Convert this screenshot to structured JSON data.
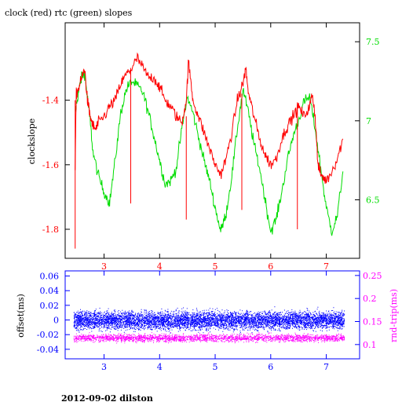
{
  "header": {
    "title": "clock (red) rtc (green) slopes"
  },
  "footer": {
    "caption": "2012-09-02 dilston"
  },
  "colors": {
    "red": "#ff0000",
    "green": "#00dd00",
    "blue": "#0000ff",
    "magenta": "#ff00ff",
    "black": "#000000"
  },
  "chart_data": [
    {
      "type": "line",
      "title": "clock (red) rtc (green) slopes",
      "xlim": [
        2.3,
        7.6
      ],
      "xticks": [
        3,
        4,
        5,
        6,
        7
      ],
      "ylabel": "clockslope",
      "ylim": [
        -1.89,
        -1.16
      ],
      "yticks": [
        -1.4,
        -1.6,
        -1.8
      ],
      "y2lim": [
        6.13,
        7.62
      ],
      "y2ticks": [
        7.5,
        7,
        6.5
      ],
      "series": [
        {
          "color": "red",
          "axis": "left",
          "points": [
            [
              2.48,
              -1.6
            ],
            [
              2.5,
              -1.38
            ],
            [
              2.55,
              -1.36
            ],
            [
              2.6,
              -1.33
            ],
            [
              2.65,
              -1.3
            ],
            [
              2.7,
              -1.4
            ],
            [
              2.75,
              -1.45
            ],
            [
              2.8,
              -1.48
            ],
            [
              2.85,
              -1.49
            ],
            [
              2.9,
              -1.47
            ],
            [
              3.0,
              -1.45
            ],
            [
              3.1,
              -1.42
            ],
            [
              3.2,
              -1.4
            ],
            [
              3.3,
              -1.35
            ],
            [
              3.4,
              -1.32
            ],
            [
              3.5,
              -1.3
            ],
            [
              3.6,
              -1.27
            ],
            [
              3.7,
              -1.3
            ],
            [
              3.8,
              -1.33
            ],
            [
              3.9,
              -1.33
            ],
            [
              4.0,
              -1.36
            ],
            [
              4.1,
              -1.4
            ],
            [
              4.2,
              -1.42
            ],
            [
              4.3,
              -1.45
            ],
            [
              4.4,
              -1.47
            ],
            [
              4.48,
              -1.4
            ],
            [
              4.52,
              -1.28
            ],
            [
              4.6,
              -1.4
            ],
            [
              4.7,
              -1.45
            ],
            [
              4.8,
              -1.5
            ],
            [
              4.9,
              -1.55
            ],
            [
              5.0,
              -1.6
            ],
            [
              5.1,
              -1.63
            ],
            [
              5.2,
              -1.58
            ],
            [
              5.3,
              -1.5
            ],
            [
              5.4,
              -1.4
            ],
            [
              5.5,
              -1.35
            ],
            [
              5.55,
              -1.3
            ],
            [
              5.6,
              -1.38
            ],
            [
              5.7,
              -1.45
            ],
            [
              5.8,
              -1.52
            ],
            [
              5.9,
              -1.57
            ],
            [
              6.0,
              -1.6
            ],
            [
              6.1,
              -1.58
            ],
            [
              6.2,
              -1.52
            ],
            [
              6.3,
              -1.48
            ],
            [
              6.4,
              -1.45
            ],
            [
              6.5,
              -1.42
            ],
            [
              6.6,
              -1.45
            ],
            [
              6.7,
              -1.42
            ],
            [
              6.75,
              -1.38
            ],
            [
              6.8,
              -1.45
            ],
            [
              6.85,
              -1.6
            ],
            [
              6.9,
              -1.63
            ],
            [
              7.0,
              -1.65
            ],
            [
              7.1,
              -1.62
            ],
            [
              7.2,
              -1.58
            ],
            [
              7.3,
              -1.52
            ]
          ]
        },
        {
          "color": "green",
          "axis": "right",
          "points": [
            [
              2.48,
              7.05
            ],
            [
              2.5,
              7.1
            ],
            [
              2.55,
              7.2
            ],
            [
              2.6,
              7.28
            ],
            [
              2.65,
              7.3
            ],
            [
              2.7,
              7.15
            ],
            [
              2.75,
              7.0
            ],
            [
              2.8,
              6.8
            ],
            [
              2.9,
              6.65
            ],
            [
              3.0,
              6.55
            ],
            [
              3.1,
              6.48
            ],
            [
              3.2,
              6.75
            ],
            [
              3.3,
              7.05
            ],
            [
              3.4,
              7.2
            ],
            [
              3.5,
              7.25
            ],
            [
              3.6,
              7.22
            ],
            [
              3.7,
              7.18
            ],
            [
              3.8,
              7.05
            ],
            [
              3.9,
              6.9
            ],
            [
              4.0,
              6.75
            ],
            [
              4.1,
              6.6
            ],
            [
              4.2,
              6.62
            ],
            [
              4.3,
              6.7
            ],
            [
              4.4,
              6.95
            ],
            [
              4.5,
              7.15
            ],
            [
              4.6,
              7.05
            ],
            [
              4.7,
              6.9
            ],
            [
              4.8,
              6.75
            ],
            [
              4.9,
              6.62
            ],
            [
              5.0,
              6.45
            ],
            [
              5.1,
              6.3
            ],
            [
              5.2,
              6.42
            ],
            [
              5.3,
              6.65
            ],
            [
              5.4,
              6.95
            ],
            [
              5.5,
              7.2
            ],
            [
              5.6,
              7.05
            ],
            [
              5.7,
              6.85
            ],
            [
              5.8,
              6.7
            ],
            [
              5.9,
              6.5
            ],
            [
              6.0,
              6.3
            ],
            [
              6.1,
              6.38
            ],
            [
              6.2,
              6.55
            ],
            [
              6.3,
              6.75
            ],
            [
              6.4,
              6.9
            ],
            [
              6.5,
              7.0
            ],
            [
              6.6,
              7.12
            ],
            [
              6.7,
              7.15
            ],
            [
              6.8,
              6.95
            ],
            [
              6.9,
              6.7
            ],
            [
              7.0,
              6.45
            ],
            [
              7.1,
              6.3
            ],
            [
              7.2,
              6.4
            ],
            [
              7.3,
              6.68
            ]
          ]
        }
      ]
    },
    {
      "type": "scatter",
      "xlim": [
        2.3,
        7.6
      ],
      "xticks": [
        3,
        4,
        5,
        6,
        7
      ],
      "ylabel": "offset(ms)",
      "ylim": [
        -0.053,
        0.067
      ],
      "yticks": [
        0.06,
        0.04,
        0.02,
        0,
        -0.02,
        -0.04
      ],
      "y2label": "rnd-trip(ms)",
      "y2lim": [
        0.069,
        0.26
      ],
      "y2ticks": [
        0.25,
        0.2,
        0.15,
        0.1
      ],
      "series": [
        {
          "color": "blue",
          "axis": "left",
          "x_range": [
            2.45,
            7.32
          ],
          "center": 0.0,
          "spread": 0.012
        },
        {
          "color": "magenta",
          "axis": "right",
          "x_range": [
            2.45,
            7.32
          ],
          "center": 0.115,
          "spread": 0.008
        }
      ]
    }
  ]
}
